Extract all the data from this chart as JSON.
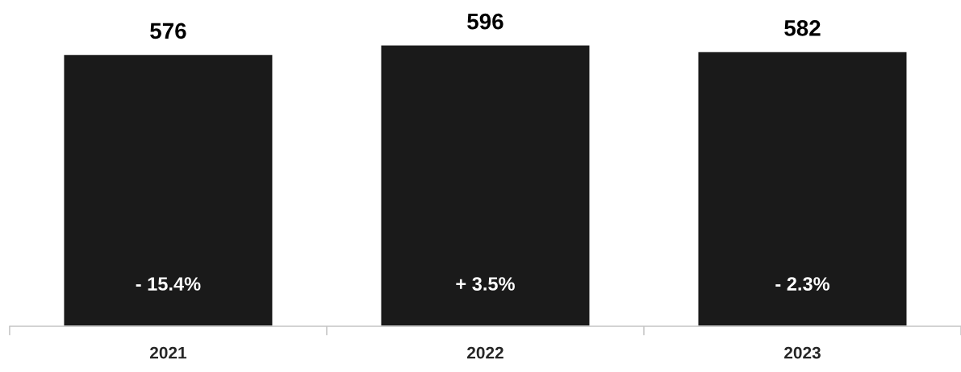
{
  "chart_data": {
    "type": "bar",
    "categories": [
      "2021",
      "2022",
      "2023"
    ],
    "values": [
      576,
      596,
      582
    ],
    "color": "#1a1a1a",
    "data_labels": true,
    "annotations": [
      "- 15.4%",
      "+ 3.5%",
      "- 2.3%"
    ]
  }
}
